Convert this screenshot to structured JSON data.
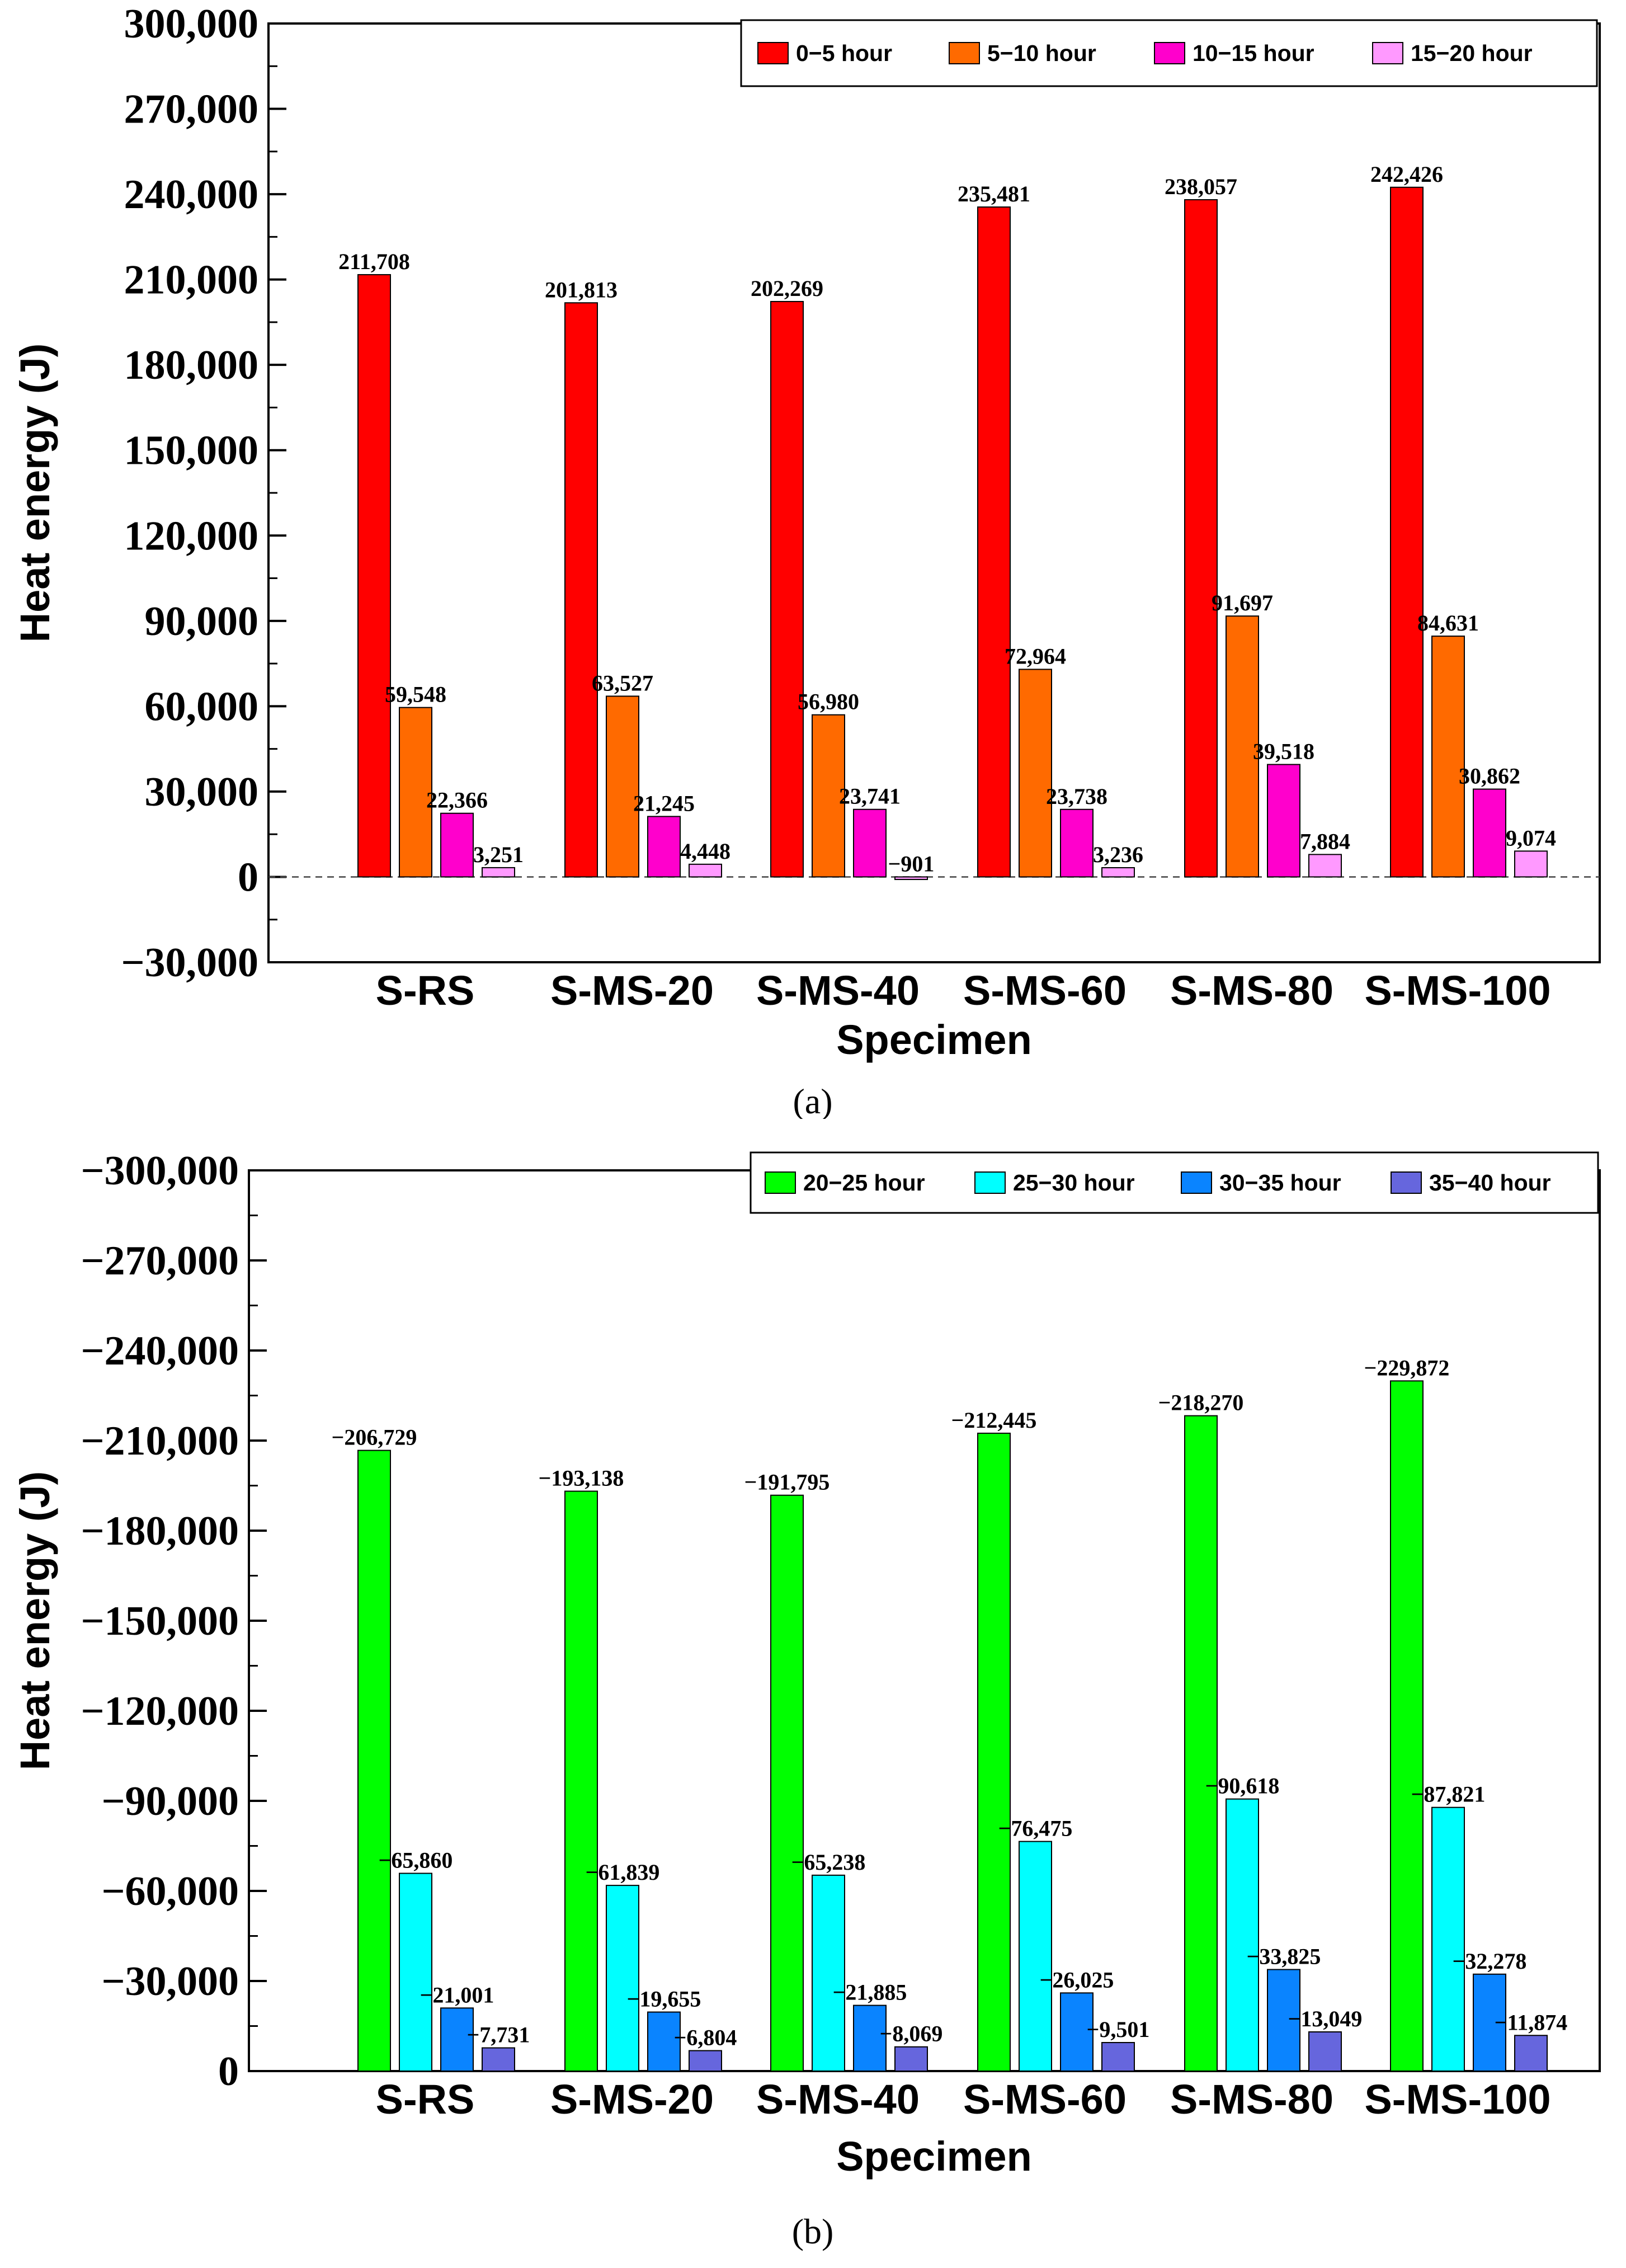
{
  "chart_data": [
    {
      "type": "bar",
      "panel": "(a)",
      "xlabel": "Specimen",
      "ylabel": "Heat energy (J)",
      "ylim": [
        -30000,
        300000
      ],
      "y_ticks": [
        -30000,
        0,
        30000,
        60000,
        90000,
        120000,
        150000,
        180000,
        210000,
        240000,
        270000,
        300000
      ],
      "y_tick_labels": [
        "−30,000",
        "0",
        "30,000",
        "60,000",
        "90,000",
        "120,000",
        "150,000",
        "180,000",
        "210,000",
        "240,000",
        "270,000",
        "300,000"
      ],
      "categories": [
        "S-RS",
        "S-MS-20",
        "S-MS-40",
        "S-MS-60",
        "S-MS-80",
        "S-MS-100"
      ],
      "legend_position": "top-right",
      "series": [
        {
          "name": "0−5 hour",
          "color": "#ff0000",
          "values": [
            211708,
            201813,
            202269,
            235481,
            238057,
            242426
          ],
          "labels": [
            "211,708",
            "201,813",
            "202,269",
            "235,481",
            "238,057",
            "242,426"
          ]
        },
        {
          "name": "5−10 hour",
          "color": "#ff6a00",
          "values": [
            59548,
            63527,
            56980,
            72964,
            91697,
            84631
          ],
          "labels": [
            "59,548",
            "63,527",
            "56,980",
            "72,964",
            "91,697",
            "84,631"
          ]
        },
        {
          "name": "10−15 hour",
          "color": "#ff00cc",
          "values": [
            22366,
            21245,
            23741,
            23738,
            39518,
            30862
          ],
          "labels": [
            "22,366",
            "21,245",
            "23,741",
            "23,738",
            "39,518",
            "30,862"
          ]
        },
        {
          "name": "15−20 hour",
          "color": "#ff99ff",
          "values": [
            3251,
            4448,
            -901,
            3236,
            7884,
            9074
          ],
          "labels": [
            "3,251",
            "4,448",
            "−901",
            "3,236",
            "7,884",
            "9,074"
          ]
        }
      ]
    },
    {
      "type": "bar",
      "panel": "(b)",
      "xlabel": "Specimen",
      "ylabel": "Heat energy (J)",
      "ylim": [
        0,
        -300000
      ],
      "y_ticks": [
        0,
        -30000,
        -60000,
        -90000,
        -120000,
        -150000,
        -180000,
        -210000,
        -240000,
        -270000,
        -300000
      ],
      "y_tick_labels": [
        "0",
        "−30,000",
        "−60,000",
        "−90,000",
        "−120,000",
        "−150,000",
        "−180,000",
        "−210,000",
        "−240,000",
        "−270,000",
        "−300,000"
      ],
      "categories": [
        "S-RS",
        "S-MS-20",
        "S-MS-40",
        "S-MS-60",
        "S-MS-80",
        "S-MS-100"
      ],
      "legend_position": "top-right",
      "series": [
        {
          "name": "20−25 hour",
          "color": "#00ff00",
          "values": [
            -206729,
            -193138,
            -191795,
            -212445,
            -218270,
            -229872
          ],
          "labels": [
            "−206,729",
            "−193,138",
            "−191,795",
            "−212,445",
            "−218,270",
            "−229,872"
          ]
        },
        {
          "name": "25−30 hour",
          "color": "#00ffff",
          "values": [
            -65860,
            -61839,
            -65238,
            -76475,
            -90618,
            -87821
          ],
          "labels": [
            "−65,860",
            "−61,839",
            "−65,238",
            "−76,475",
            "−90,618",
            "−87,821"
          ]
        },
        {
          "name": "30−35 hour",
          "color": "#0a84ff",
          "values": [
            -21001,
            -19655,
            -21885,
            -26025,
            -33825,
            -32278
          ],
          "labels": [
            "−21,001",
            "−19,655",
            "−21,885",
            "−26,025",
            "−33,825",
            "−32,278"
          ]
        },
        {
          "name": "35−40 hour",
          "color": "#6666dd",
          "values": [
            -7731,
            -6804,
            -8069,
            -9501,
            -13049,
            -11874
          ],
          "labels": [
            "−7,731",
            "−6,804",
            "−8,069",
            "−9,501",
            "−13,049",
            "−11,874"
          ]
        }
      ]
    }
  ]
}
